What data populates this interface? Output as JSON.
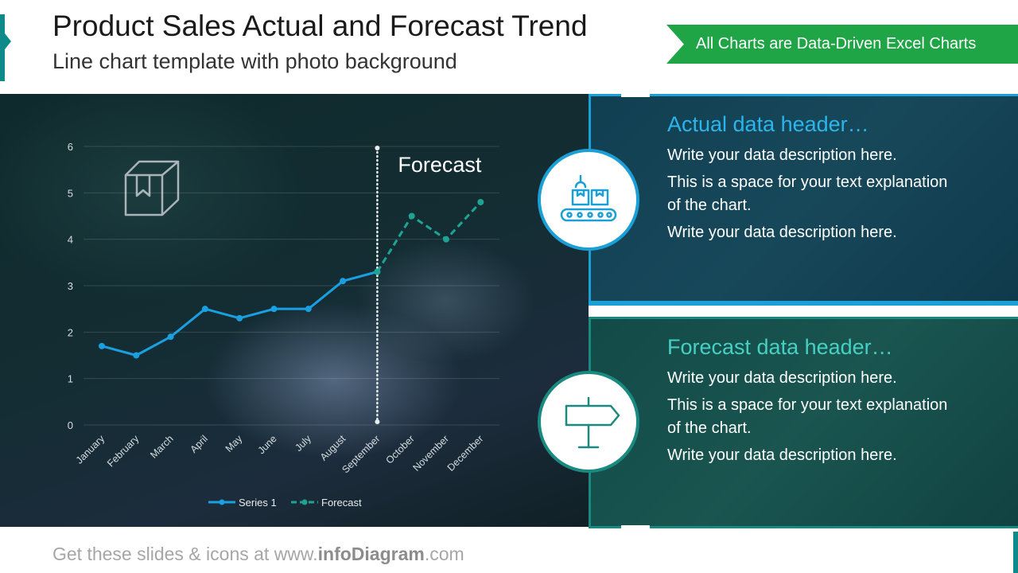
{
  "header": {
    "title": "Product Sales Actual and Forecast Trend",
    "subtitle": "Line chart template with photo background",
    "banner": "All Charts are Data-Driven Excel Charts"
  },
  "chart_data": {
    "type": "line",
    "categories": [
      "January",
      "February",
      "March",
      "April",
      "May",
      "June",
      "July",
      "August",
      "September",
      "October",
      "November",
      "December"
    ],
    "series": [
      {
        "name": "Series 1",
        "values": [
          1.7,
          1.5,
          1.9,
          2.5,
          2.3,
          2.5,
          2.5,
          3.1,
          3.3,
          null,
          null,
          null
        ],
        "style": "solid",
        "color": "#1aa0e0"
      },
      {
        "name": "Forecast",
        "values": [
          null,
          null,
          null,
          null,
          null,
          null,
          null,
          null,
          3.3,
          4.5,
          4.0,
          4.8
        ],
        "style": "dashed",
        "color": "#1fa394"
      }
    ],
    "yticks": [
      0,
      1,
      2,
      3,
      4,
      5,
      6
    ],
    "ylim": [
      0,
      6
    ],
    "annotation": "Forecast",
    "divider_after": "September",
    "legend": "bottom",
    "grid": true
  },
  "cards": {
    "actual": {
      "header": "Actual data header…",
      "lines": [
        "Write your data description here.",
        "This is a space for your text explanation of the chart.",
        "Write your data description here."
      ],
      "icon": "conveyor-belt-icon",
      "color": "#1a9fd6"
    },
    "forecast": {
      "header": "Forecast data header…",
      "lines": [
        "Write your data description here.",
        "This is a space for your text explanation of the chart.",
        "Write your data description here."
      ],
      "icon": "signpost-icon",
      "color": "#1a8a80"
    }
  },
  "footer": {
    "prefix": "Get these slides & icons at www.",
    "brand": "infoDiagram",
    "suffix": ".com"
  }
}
